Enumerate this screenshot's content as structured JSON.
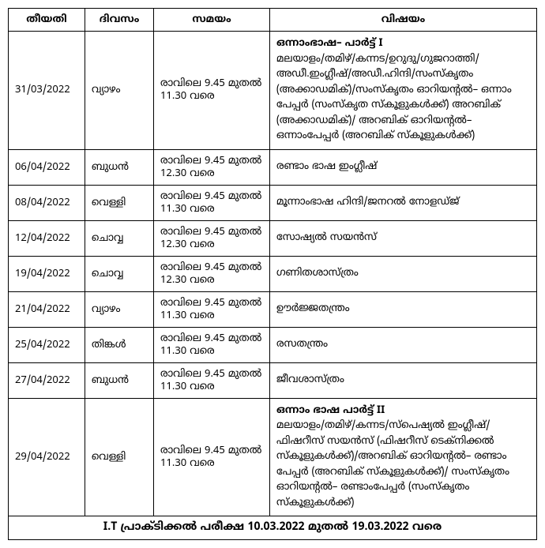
{
  "headers": {
    "date": "തീയതി",
    "day": "ദിവസം",
    "time": "സമയം",
    "subject": "വിഷയം"
  },
  "rows": [
    {
      "date": "31/03/2022",
      "day": "വ്യാഴം",
      "time": "രാവിലെ 9.45 മുതൽ 11.30 വരെ",
      "subject_title": "ഒന്നാംഭാഷ– പാർട്ട് I",
      "subject_body": "മലയാളം/തമിഴ്/കന്നട/ഉറുദു/ഗുജറാത്തി/ അഡീ.ഇംഗ്ലീഷ്/അഡീ.ഹിന്ദി/സംസ്കൃതം (അക്കാഡമിക്)/സംസ്കൃതം ഓറിയന്റൽ– ഒന്നാം പേപ്പർ (സംസ്കൃത സ്കൂളുകൾക്ക്) അറബിക് (അക്കാഡമിക്)/ അറബിക് ഓറിയന്റൽ– ഒന്നാംപേപ്പർ (അറബിക് സ്കൂളുകൾക്ക്)"
    },
    {
      "date": "06/04/2022",
      "day": "ബുധൻ",
      "time": "രാവിലെ 9.45 മുതൽ 12.30 വരെ",
      "subject_title": "",
      "subject_body": "രണ്ടാം ഭാഷ ഇംഗ്ലീഷ്"
    },
    {
      "date": "08/04/2022",
      "day": "വെള്ളി",
      "time": "രാവിലെ 9.45 മുതൽ 11.30 വരെ",
      "subject_title": "",
      "subject_body": "മൂന്നാംഭാഷ ഹിന്ദി/ജനറൽ നോളഡ്ജ്"
    },
    {
      "date": "12/04/2022",
      "day": "ചൊവ്വ",
      "time": "രാവിലെ 9.45 മുതൽ 12.30 വരെ",
      "subject_title": "",
      "subject_body": "സോഷ്യൽ സയൻസ്"
    },
    {
      "date": "19/04/2022",
      "day": "ചൊവ്വ",
      "time": "രാവിലെ 9.45 മുതൽ 12.30 വരെ",
      "subject_title": "",
      "subject_body": "ഗണിതശാസ്ത്രം"
    },
    {
      "date": "21/04/2022",
      "day": "വ്യാഴം",
      "time": "രാവിലെ 9.45 മുതൽ 11.30 വരെ",
      "subject_title": "",
      "subject_body": "ഊർജ്ജതന്ത്രം"
    },
    {
      "date": "25/04/2022",
      "day": "തിങ്കൾ",
      "time": "രാവിലെ 9.45 മുതൽ 11.30 വരെ",
      "subject_title": "",
      "subject_body": "രസതന്ത്രം"
    },
    {
      "date": "27/04/2022",
      "day": "ബുധൻ",
      "time": "രാവിലെ 9.45 മുതൽ 11.30 വരെ",
      "subject_title": "",
      "subject_body": "ജീവശാസ്ത്രം"
    },
    {
      "date": "29/04/2022",
      "day": "വെള്ളി",
      "time": "രാവിലെ 9.45 മുതൽ 11.30 വരെ",
      "subject_title": "ഒന്നാം ഭാഷ പാർട്ട് II",
      "subject_body": "മലയാളം/തമിഴ്/കന്നട/സ്പെഷ്യൽ ഇംഗ്ലീഷ്/ ഫിഷറീസ് സയൻസ് (ഫിഷറീസ് ടെക്നിക്കൽ സ്കൂളുകൾക്ക്)/അറബിക് ഓറിയന്റൽ– രണ്ടാം പേപ്പർ (അറബിക് സ്കൂളുകൾക്ക്)/ സംസ്കൃതം ഓറിയന്റൽ– രണ്ടാംപേപ്പർ (സംസ്കൃതം സ്കൂളുകൾക്ക്)"
    }
  ],
  "footer": "I.T പ്രാക്ടിക്കൽ പരീക്ഷ 10.03.2022 മുതൽ 19.03.2022 വരെ"
}
